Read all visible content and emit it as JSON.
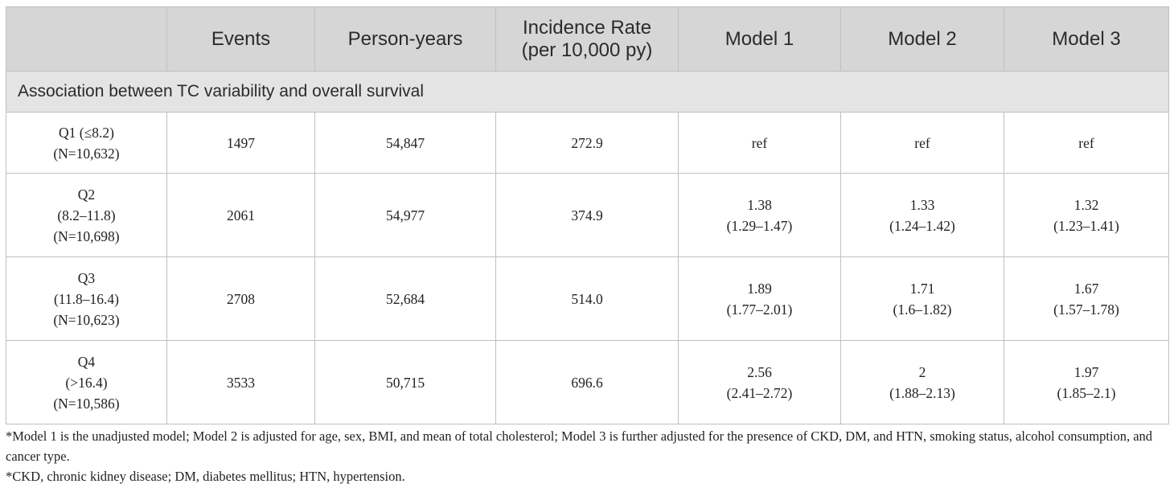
{
  "header": {
    "col0": "",
    "col1": "Events",
    "col2": "Person-years",
    "col3_line1": "Incidence Rate",
    "col3_line2": "(per 10,000 py)",
    "col4": "Model 1",
    "col5": "Model 2",
    "col6": "Model 3"
  },
  "section": {
    "title": "Association between TC variability and overall survival"
  },
  "rows": [
    {
      "label": [
        "Q1 (≤8.2)",
        "(N=10,632)"
      ],
      "events": "1497",
      "person_years": "54,847",
      "incidence_rate": "272.9",
      "model1": [
        "ref"
      ],
      "model2": [
        "ref"
      ],
      "model3": [
        "ref"
      ]
    },
    {
      "label": [
        "Q2",
        "(8.2–11.8)",
        "(N=10,698)"
      ],
      "events": "2061",
      "person_years": "54,977",
      "incidence_rate": "374.9",
      "model1": [
        "1.38",
        "(1.29–1.47)"
      ],
      "model2": [
        "1.33",
        "(1.24–1.42)"
      ],
      "model3": [
        "1.32",
        "(1.23–1.41)"
      ]
    },
    {
      "label": [
        "Q3",
        "(11.8–16.4)",
        "(N=10,623)"
      ],
      "events": "2708",
      "person_years": "52,684",
      "incidence_rate": "514.0",
      "model1": [
        "1.89",
        "(1.77–2.01)"
      ],
      "model2": [
        "1.71",
        "(1.6–1.82)"
      ],
      "model3": [
        "1.67",
        "(1.57–1.78)"
      ]
    },
    {
      "label": [
        "Q4",
        "(>16.4)",
        "(N=10,586)"
      ],
      "events": "3533",
      "person_years": "50,715",
      "incidence_rate": "696.6",
      "model1": [
        "2.56",
        "(2.41–2.72)"
      ],
      "model2": [
        "2",
        "(1.88–2.13)"
      ],
      "model3": [
        "1.97",
        "(1.85–2.1)"
      ]
    }
  ],
  "footnotes": [
    "*Model 1 is the unadjusted model; Model 2 is adjusted for age, sex, BMI, and mean of total cholesterol; Model 3 is further adjusted for the presence of CKD, DM, and HTN, smoking status, alcohol consumption, and cancer type.",
    "*CKD, chronic kidney disease; DM, diabetes mellitus; HTN, hypertension."
  ]
}
